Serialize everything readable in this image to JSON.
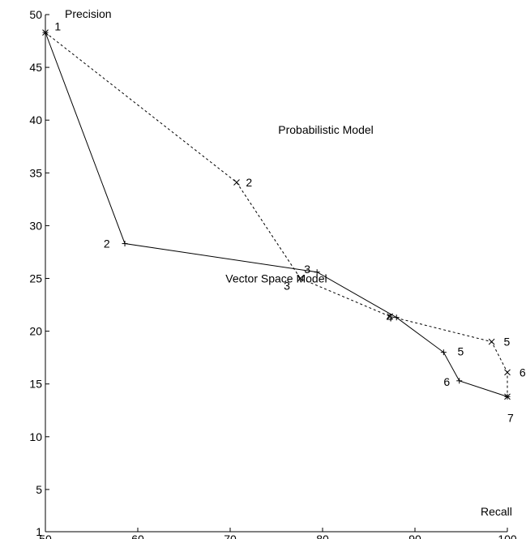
{
  "chart_data": {
    "type": "line",
    "xlabel": "Recall",
    "ylabel": "Precision",
    "xlim": [
      50,
      100
    ],
    "ylim": [
      1,
      50
    ],
    "x_ticks": [
      50,
      60,
      70,
      80,
      90,
      100
    ],
    "y_ticks": [
      1,
      5,
      10,
      15,
      20,
      25,
      30,
      35,
      40,
      45,
      50
    ],
    "grid": false,
    "series": [
      {
        "name": "Vector Space Model",
        "line_style": "solid",
        "marker": "+",
        "points": [
          {
            "x": 50.0,
            "y": 48.3,
            "label": "1"
          },
          {
            "x": 58.6,
            "y": 28.3,
            "label": "2"
          },
          {
            "x": 79.4,
            "y": 25.6,
            "label": "3"
          },
          {
            "x": 88.0,
            "y": 21.3,
            "label": "4"
          },
          {
            "x": 93.1,
            "y": 18.0,
            "label": "5"
          },
          {
            "x": 94.8,
            "y": 15.3,
            "label": "6"
          },
          {
            "x": 100.0,
            "y": 13.8,
            "label": "7"
          }
        ]
      },
      {
        "name": "Probabilistic Model",
        "line_style": "dashed",
        "marker": "x",
        "points": [
          {
            "x": 50.0,
            "y": 48.3,
            "label": "1"
          },
          {
            "x": 70.7,
            "y": 34.1,
            "label": "2"
          },
          {
            "x": 77.6,
            "y": 25.0,
            "label": "3"
          },
          {
            "x": 87.3,
            "y": 21.4,
            "label": "4"
          },
          {
            "x": 98.3,
            "y": 19.0,
            "label": "5"
          },
          {
            "x": 100.0,
            "y": 16.1,
            "label": "6"
          },
          {
            "x": 100.0,
            "y": 13.8,
            "label": "7"
          }
        ]
      }
    ],
    "annotations": [
      {
        "text": "1",
        "x": 51.0,
        "y": 48.9
      },
      {
        "text": "2",
        "x": 71.7,
        "y": 34.1
      },
      {
        "text": "Probabilistic Model",
        "x": 75.2,
        "y": 39.1
      },
      {
        "text": "2",
        "x": 56.3,
        "y": 28.3
      },
      {
        "text": "3",
        "x": 78.0,
        "y": 25.9
      },
      {
        "text": "Vector Space Model",
        "x": 69.5,
        "y": 25.0
      },
      {
        "text": "3",
        "x": 75.8,
        "y": 24.3
      },
      {
        "text": "4",
        "x": 86.9,
        "y": 21.3
      },
      {
        "text": "5",
        "x": 94.6,
        "y": 18.1
      },
      {
        "text": "5",
        "x": 99.6,
        "y": 19.0
      },
      {
        "text": "6",
        "x": 101.3,
        "y": 16.1
      },
      {
        "text": "6",
        "x": 93.1,
        "y": 15.2
      },
      {
        "text": "7",
        "x": 100.0,
        "y": 11.8
      }
    ]
  }
}
